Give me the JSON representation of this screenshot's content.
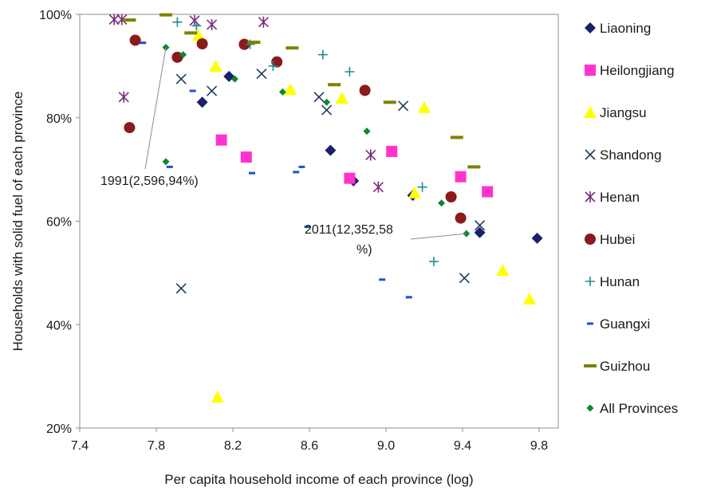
{
  "chart_data": {
    "type": "scatter",
    "xlabel": "Per capita household income of each province (log)",
    "ylabel": "Households with solid fuel of each province",
    "xlim": [
      7.4,
      9.9
    ],
    "ylim": [
      20,
      100
    ],
    "x_ticks": [
      "7.4",
      "7.8",
      "8.2",
      "8.6",
      "9.0",
      "9.4",
      "9.8"
    ],
    "y_ticks": [
      "20%",
      "40%",
      "60%",
      "80%",
      "100%"
    ],
    "grid": false,
    "legend_position": "right",
    "annotations": [
      {
        "text_lines": [
          "1991(2,596,94%)"
        ]
      },
      {
        "text_lines": [
          "2011(12,352,58",
          "%)"
        ]
      }
    ],
    "series": [
      {
        "name": "Liaoning",
        "marker": "diamond",
        "color": "#1a1f6e",
        "points": [
          [
            8.04,
            94.5
          ],
          [
            8.18,
            88.0
          ],
          [
            8.04,
            83.0
          ],
          [
            8.71,
            73.7
          ],
          [
            8.83,
            67.8
          ],
          [
            9.14,
            65.0
          ],
          [
            9.49,
            57.8
          ],
          [
            9.79,
            56.7
          ]
        ]
      },
      {
        "name": "Heilongjiang",
        "marker": "square",
        "color": "#ff33cc",
        "points": [
          [
            8.14,
            75.7
          ],
          [
            8.27,
            72.4
          ],
          [
            8.81,
            68.3
          ],
          [
            9.03,
            73.5
          ],
          [
            9.39,
            68.6
          ],
          [
            9.53,
            65.7
          ]
        ]
      },
      {
        "name": "Jiangsu",
        "marker": "triangle",
        "color": "#ffff00",
        "points": [
          [
            8.02,
            96.0
          ],
          [
            8.11,
            90.0
          ],
          [
            8.5,
            85.5
          ],
          [
            8.77,
            83.8
          ],
          [
            9.2,
            82.0
          ],
          [
            9.15,
            65.5
          ],
          [
            9.61,
            50.5
          ],
          [
            9.75,
            45.0
          ],
          [
            8.12,
            26.0
          ]
        ]
      },
      {
        "name": "Shandong",
        "marker": "x",
        "color": "#1f3a5f",
        "points": [
          [
            7.93,
            87.5
          ],
          [
            8.09,
            85.2
          ],
          [
            8.35,
            88.5
          ],
          [
            8.65,
            84.0
          ],
          [
            8.69,
            81.5
          ],
          [
            9.09,
            82.3
          ],
          [
            9.49,
            59.2
          ],
          [
            9.41,
            49.0
          ],
          [
            7.93,
            47.0
          ]
        ]
      },
      {
        "name": "Henan",
        "marker": "star",
        "color": "#7b2c7b",
        "points": [
          [
            7.58,
            99.0
          ],
          [
            7.62,
            99.0
          ],
          [
            8.0,
            98.8
          ],
          [
            8.09,
            98.0
          ],
          [
            8.36,
            98.5
          ],
          [
            7.63,
            84.0
          ],
          [
            8.92,
            72.8
          ],
          [
            8.96,
            66.6
          ]
        ]
      },
      {
        "name": "Hubei",
        "marker": "circle",
        "color": "#8b1a1a",
        "points": [
          [
            7.69,
            95.0
          ],
          [
            7.91,
            91.7
          ],
          [
            8.04,
            94.3
          ],
          [
            8.26,
            94.2
          ],
          [
            8.43,
            90.8
          ],
          [
            8.89,
            85.3
          ],
          [
            7.66,
            78.1
          ],
          [
            9.34,
            64.7
          ],
          [
            9.39,
            60.6
          ]
        ]
      },
      {
        "name": "Hunan",
        "marker": "plus",
        "color": "#1a8f8f",
        "points": [
          [
            7.91,
            98.5
          ],
          [
            8.01,
            97.8
          ],
          [
            8.29,
            94.2
          ],
          [
            8.41,
            90.0
          ],
          [
            8.67,
            92.2
          ],
          [
            8.81,
            88.9
          ],
          [
            9.19,
            66.6
          ],
          [
            9.25,
            52.2
          ]
        ]
      },
      {
        "name": "Guangxi",
        "marker": "dash",
        "color": "#1f4fd1",
        "points": [
          [
            7.73,
            94.5
          ],
          [
            7.87,
            70.5
          ],
          [
            7.99,
            85.2
          ],
          [
            8.3,
            69.3
          ],
          [
            8.53,
            69.5
          ],
          [
            8.56,
            70.5
          ],
          [
            8.59,
            58.9
          ],
          [
            8.98,
            48.7
          ],
          [
            9.12,
            45.3
          ]
        ]
      },
      {
        "name": "Guizhou",
        "marker": "bar",
        "color": "#808000",
        "points": [
          [
            7.66,
            98.9
          ],
          [
            7.85,
            99.9
          ],
          [
            7.98,
            96.4
          ],
          [
            8.31,
            94.6
          ],
          [
            8.51,
            93.5
          ],
          [
            8.73,
            86.4
          ],
          [
            9.02,
            83.0
          ],
          [
            9.37,
            76.2
          ],
          [
            9.46,
            70.5
          ]
        ]
      },
      {
        "name": "All Provinces",
        "marker": "smalldiamond",
        "color": "#0a8a2a",
        "points": [
          [
            7.85,
            93.6
          ],
          [
            7.94,
            92.2
          ],
          [
            8.21,
            87.5
          ],
          [
            8.46,
            85.0
          ],
          [
            8.69,
            83.0
          ],
          [
            8.9,
            77.4
          ],
          [
            9.29,
            63.5
          ],
          [
            9.42,
            57.6
          ],
          [
            7.85,
            71.5
          ]
        ]
      }
    ]
  }
}
